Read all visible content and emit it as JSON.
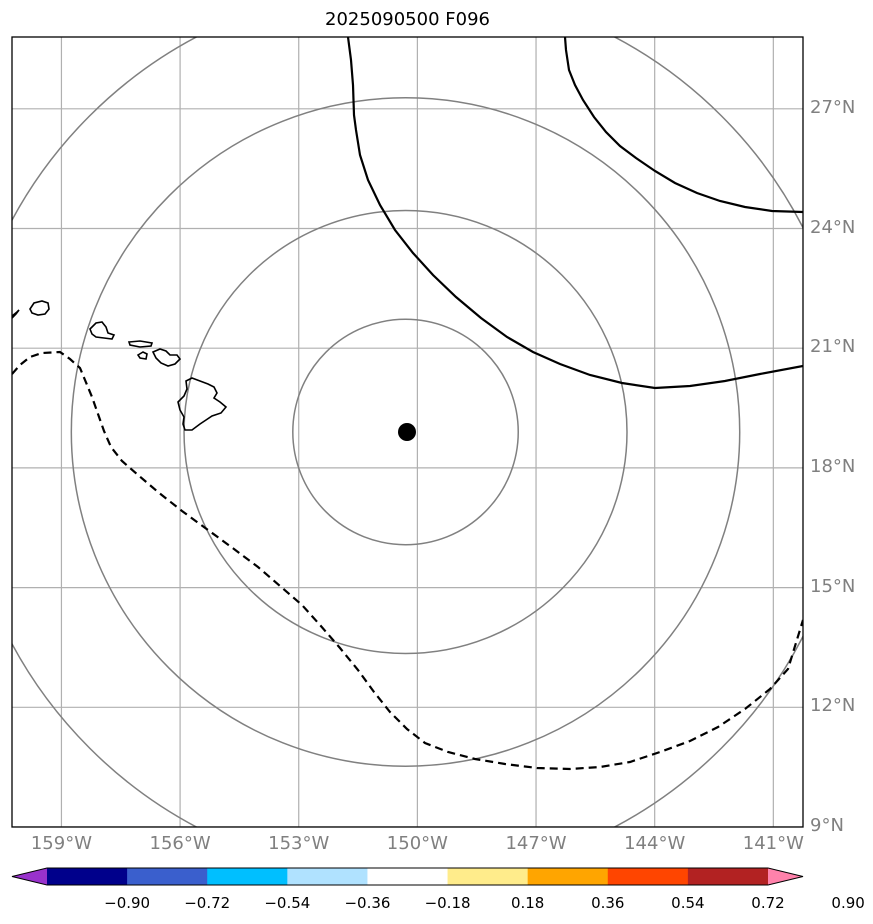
{
  "title": "2025090500 F096",
  "map": {
    "lat_range": [
      9,
      28.8
    ],
    "lon_range": [
      -160.25,
      -140.25
    ],
    "lat_ticks": [
      {
        "value": 9,
        "label": "9°N"
      },
      {
        "value": 12,
        "label": "12°N"
      },
      {
        "value": 15,
        "label": "15°N"
      },
      {
        "value": 18,
        "label": "18°N"
      },
      {
        "value": 21,
        "label": "21°N"
      },
      {
        "value": 24,
        "label": "24°N"
      },
      {
        "value": 27,
        "label": "27°N"
      }
    ],
    "lon_ticks": [
      {
        "value": -159,
        "label": "159°W"
      },
      {
        "value": -156,
        "label": "156°W"
      },
      {
        "value": -153,
        "label": "153°W"
      },
      {
        "value": -150,
        "label": "150°W"
      },
      {
        "value": -147,
        "label": "147°W"
      },
      {
        "value": -144,
        "label": "144°W"
      },
      {
        "value": -141,
        "label": "141°W"
      }
    ],
    "center": {
      "lon": -150.3,
      "lat": 18.9
    },
    "range_rings_deg": [
      2.85,
      5.6,
      8.45,
      11.3
    ],
    "colors": {
      "grid": "#b0b0b0",
      "rings": "#808080",
      "contour": "#000000",
      "coast": "#000000",
      "center": "#000000"
    }
  },
  "colorbar": {
    "colors": [
      "#9932cc",
      "#00008b",
      "#3a5fcd",
      "#00bfff",
      "#b0e2ff",
      "#ffffff",
      "#ffec8b",
      "#ffa500",
      "#ff4500",
      "#b22222",
      "#ff82ab"
    ],
    "labels": [
      "−0.90",
      "−0.72",
      "−0.54",
      "−0.36",
      "−0.18",
      "0.18",
      "0.36",
      "0.54",
      "0.72",
      "0.90"
    ]
  }
}
